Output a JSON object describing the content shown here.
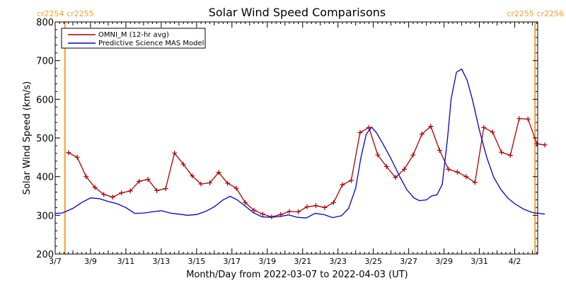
{
  "chart_data": {
    "type": "line",
    "title": "Solar Wind Speed Comparisons",
    "xlabel": "Month/Day from 2022-03-07 to 2022-04-03 (UT)",
    "ylabel": "Solar Wind Speed (km/s)",
    "xlim_days": [
      0,
      27.3
    ],
    "ylim": [
      200,
      800
    ],
    "x_ticks": [
      {
        "day": 0,
        "label": "3/7"
      },
      {
        "day": 2,
        "label": "3/9"
      },
      {
        "day": 4,
        "label": "3/11"
      },
      {
        "day": 6,
        "label": "3/13"
      },
      {
        "day": 8,
        "label": "3/15"
      },
      {
        "day": 10,
        "label": "3/17"
      },
      {
        "day": 12,
        "label": "3/19"
      },
      {
        "day": 14,
        "label": "3/21"
      },
      {
        "day": 16,
        "label": "3/23"
      },
      {
        "day": 18,
        "label": "3/25"
      },
      {
        "day": 20,
        "label": "3/27"
      },
      {
        "day": 22,
        "label": "3/29"
      },
      {
        "day": 24,
        "label": "3/31"
      },
      {
        "day": 26,
        "label": "4/2"
      }
    ],
    "y_ticks": [
      200,
      300,
      400,
      500,
      600,
      700,
      800
    ],
    "legend": {
      "placement": "top-left"
    },
    "carrington": {
      "left_label": "cr2254 cr2255",
      "right_label": "cr2255 cr2256",
      "boundaries_days": [
        0.55,
        27.15
      ],
      "color": "#f5a030"
    },
    "series": [
      {
        "name": "OMNI_M (12-hr avg)",
        "color": "#aa0000",
        "markers": "plus",
        "points": [
          [
            0.75,
            462
          ],
          [
            1.25,
            450
          ],
          [
            1.75,
            400
          ],
          [
            2.25,
            372
          ],
          [
            2.75,
            354
          ],
          [
            3.25,
            347
          ],
          [
            3.75,
            358
          ],
          [
            4.25,
            363
          ],
          [
            4.75,
            388
          ],
          [
            5.25,
            393
          ],
          [
            5.75,
            364
          ],
          [
            6.25,
            369
          ],
          [
            6.75,
            461
          ],
          [
            7.25,
            432
          ],
          [
            7.75,
            402
          ],
          [
            8.25,
            381
          ],
          [
            8.75,
            384
          ],
          [
            9.25,
            411
          ],
          [
            9.75,
            383
          ],
          [
            10.25,
            370
          ],
          [
            10.75,
            333
          ],
          [
            11.25,
            313
          ],
          [
            11.75,
            303
          ],
          [
            12.25,
            296
          ],
          [
            12.75,
            302
          ],
          [
            13.25,
            310
          ],
          [
            13.75,
            309
          ],
          [
            14.25,
            322
          ],
          [
            14.75,
            325
          ],
          [
            15.25,
            320
          ],
          [
            15.75,
            333
          ],
          [
            16.25,
            379
          ],
          [
            16.75,
            390
          ],
          [
            17.25,
            514
          ],
          [
            17.75,
            527
          ],
          [
            18.25,
            456
          ],
          [
            18.75,
            426
          ],
          [
            19.25,
            398
          ],
          [
            19.75,
            419
          ],
          [
            20.25,
            456
          ],
          [
            20.75,
            510
          ],
          [
            21.25,
            530
          ],
          [
            21.75,
            468
          ],
          [
            22.25,
            419
          ],
          [
            22.75,
            412
          ],
          [
            23.25,
            400
          ],
          [
            23.75,
            385
          ],
          [
            24.25,
            527
          ],
          [
            24.75,
            515
          ],
          [
            25.25,
            463
          ],
          [
            25.75,
            455
          ],
          [
            26.25,
            550
          ],
          [
            26.75,
            549
          ],
          [
            27.25,
            485
          ],
          [
            27.7,
            482
          ]
        ]
      },
      {
        "name": "Predictive Science MAS Model",
        "color": "#0000cc",
        "markers": "none",
        "points": [
          [
            0,
            305
          ],
          [
            0.4,
            306
          ],
          [
            1.0,
            318
          ],
          [
            1.5,
            333
          ],
          [
            2.0,
            345
          ],
          [
            2.5,
            343
          ],
          [
            3.0,
            336
          ],
          [
            3.5,
            330
          ],
          [
            4.0,
            320
          ],
          [
            4.5,
            305
          ],
          [
            5.0,
            306
          ],
          [
            5.5,
            309
          ],
          [
            6.0,
            312
          ],
          [
            6.5,
            306
          ],
          [
            7.0,
            303
          ],
          [
            7.5,
            300
          ],
          [
            8.0,
            302
          ],
          [
            8.5,
            310
          ],
          [
            9.0,
            322
          ],
          [
            9.5,
            340
          ],
          [
            9.9,
            349
          ],
          [
            10.3,
            340
          ],
          [
            10.8,
            322
          ],
          [
            11.2,
            307
          ],
          [
            11.7,
            296
          ],
          [
            12.2,
            295
          ],
          [
            12.7,
            297
          ],
          [
            13.2,
            301
          ],
          [
            13.7,
            295
          ],
          [
            14.2,
            293
          ],
          [
            14.7,
            305
          ],
          [
            15.2,
            302
          ],
          [
            15.7,
            294
          ],
          [
            16.2,
            299
          ],
          [
            16.6,
            318
          ],
          [
            17.0,
            370
          ],
          [
            17.3,
            450
          ],
          [
            17.6,
            510
          ],
          [
            17.9,
            528
          ],
          [
            18.2,
            512
          ],
          [
            18.6,
            480
          ],
          [
            19.0,
            446
          ],
          [
            19.5,
            400
          ],
          [
            19.9,
            366
          ],
          [
            20.3,
            345
          ],
          [
            20.6,
            338
          ],
          [
            21.0,
            340
          ],
          [
            21.3,
            350
          ],
          [
            21.6,
            353
          ],
          [
            21.9,
            380
          ],
          [
            22.2,
            500
          ],
          [
            22.4,
            600
          ],
          [
            22.7,
            670
          ],
          [
            23.0,
            678
          ],
          [
            23.3,
            650
          ],
          [
            23.6,
            600
          ],
          [
            24.0,
            520
          ],
          [
            24.4,
            452
          ],
          [
            24.8,
            400
          ],
          [
            25.2,
            368
          ],
          [
            25.6,
            345
          ],
          [
            26.0,
            330
          ],
          [
            26.5,
            316
          ],
          [
            27.0,
            307
          ],
          [
            27.4,
            305
          ],
          [
            27.7,
            303
          ]
        ]
      }
    ]
  }
}
